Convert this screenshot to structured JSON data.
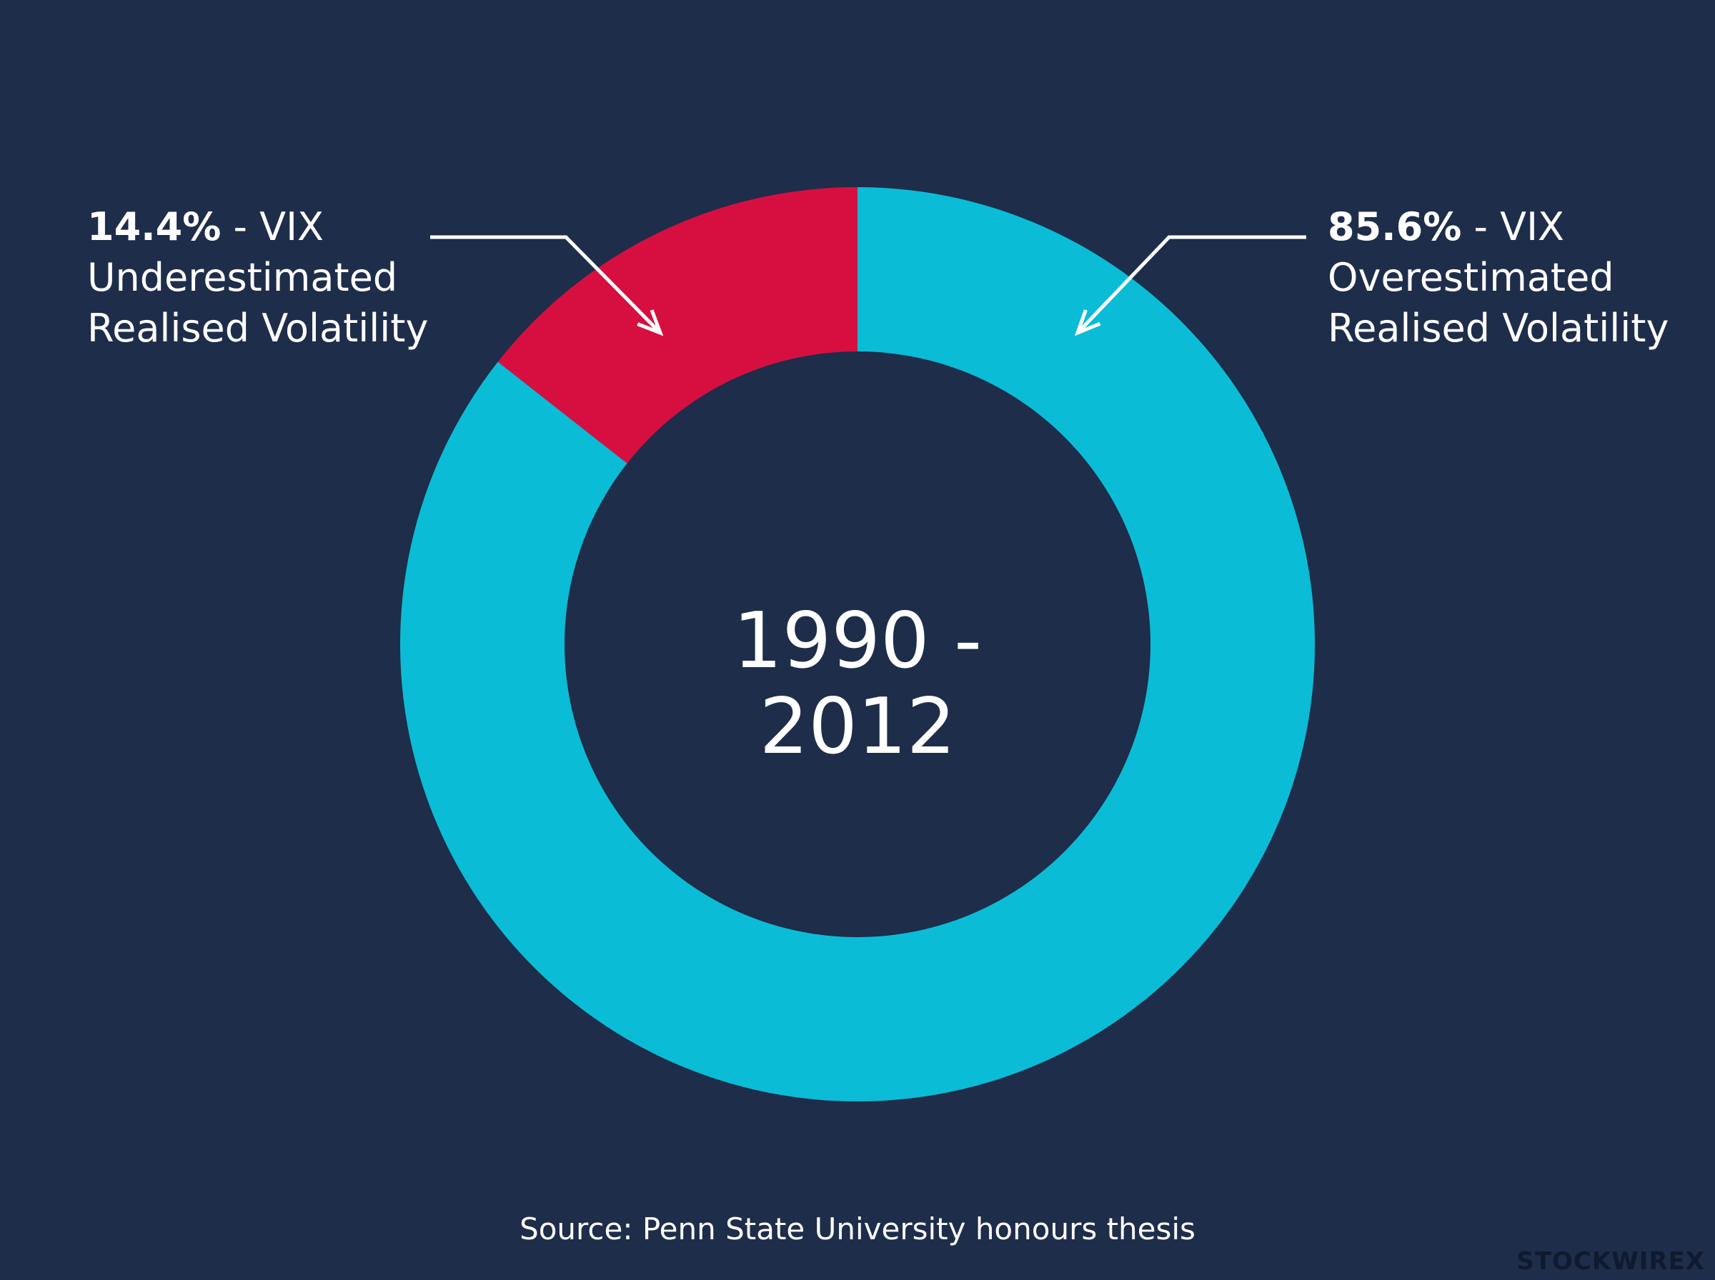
{
  "chart_data": {
    "type": "pie",
    "style": "donut",
    "center_label": "1990 - 2012",
    "slices": [
      {
        "percent_label": "85.6%",
        "value": 85.6,
        "text_suffix": " - VIX",
        "text_lines": [
          "Overestimated",
          "Realised Volatility"
        ],
        "color": "#0bbcd6"
      },
      {
        "percent_label": "14.4%",
        "value": 14.4,
        "text_suffix": " - VIX",
        "text_lines": [
          "Underestimated",
          "Realised Volatility"
        ],
        "color": "#d70f40"
      }
    ],
    "source": "Source: Penn State University honours thesis"
  },
  "colors": {
    "background": "#1e2d4a",
    "text": "#ffffff",
    "arrow": "#ffffff"
  },
  "watermark": "STOCKWIREX"
}
